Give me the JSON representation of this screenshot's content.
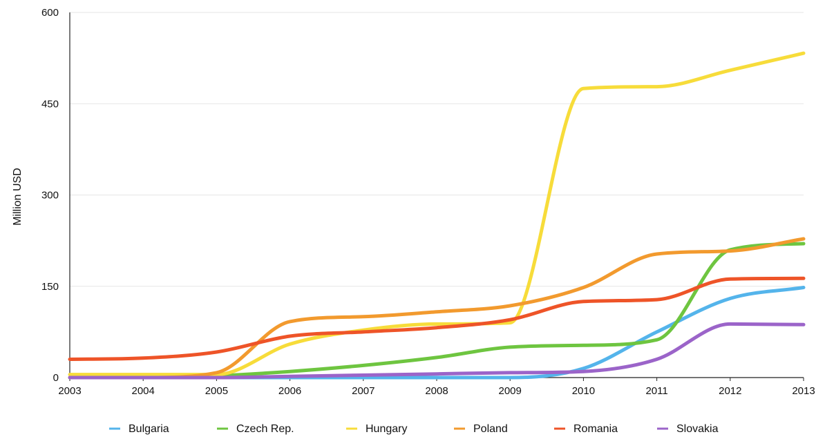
{
  "chart_data": {
    "type": "line",
    "title": "",
    "xlabel": "",
    "ylabel": "Million USD",
    "xlim": [
      2003,
      2013
    ],
    "ylim": [
      0,
      600
    ],
    "x_ticks": [
      "2003",
      "2004",
      "2005",
      "2006",
      "2007",
      "2008",
      "2009",
      "2010",
      "2011",
      "2012",
      "2013"
    ],
    "y_ticks": [
      "0",
      "150",
      "300",
      "450",
      "600"
    ],
    "grid": "horizontal",
    "legend_position": "bottom",
    "x": [
      2003,
      2004,
      2005,
      2006,
      2007,
      2008,
      2009,
      2010,
      2011,
      2012,
      2013
    ],
    "series": [
      {
        "name": "Bulgaria",
        "color": "#54b4eb",
        "values": [
          0,
          0,
          0,
          0,
          0,
          0,
          0,
          15,
          75,
          130,
          148
        ]
      },
      {
        "name": "Czech Rep.",
        "color": "#6ec540",
        "values": [
          0,
          0,
          3,
          10,
          20,
          33,
          50,
          53,
          62,
          210,
          220
        ]
      },
      {
        "name": "Hungary",
        "color": "#f7dc3a",
        "values": [
          5,
          5,
          5,
          55,
          78,
          88,
          90,
          475,
          478,
          505,
          533
        ]
      },
      {
        "name": "Poland",
        "color": "#f29a2e",
        "values": [
          0,
          0,
          8,
          92,
          100,
          108,
          118,
          148,
          203,
          208,
          228
        ]
      },
      {
        "name": "Romania",
        "color": "#ee5428",
        "values": [
          30,
          32,
          42,
          68,
          75,
          82,
          95,
          125,
          128,
          162,
          163
        ]
      },
      {
        "name": "Slovakia",
        "color": "#9b64c9",
        "values": [
          0,
          0,
          0,
          2,
          4,
          6,
          8,
          10,
          30,
          88,
          87
        ]
      }
    ]
  }
}
